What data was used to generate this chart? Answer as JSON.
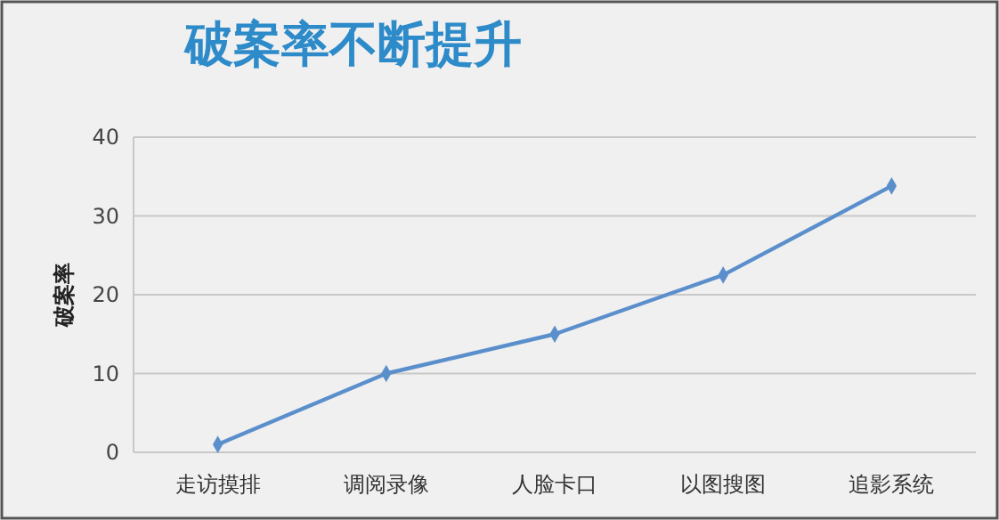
{
  "chart_data": {
    "type": "line",
    "title": "破案率不断提升",
    "ylabel": "破案率",
    "categories": [
      "走访摸排",
      "调阅录像",
      "人脸卡口",
      "以图搜图",
      "追影系统"
    ],
    "series": [
      {
        "color": "#5b8fcc",
        "values": [
          1,
          10,
          15,
          22.5,
          33.8
        ]
      }
    ],
    "ylim": [
      0,
      40
    ],
    "yticks": [
      0,
      10,
      20,
      30,
      40
    ],
    "grid": "y",
    "marker": "diamond"
  }
}
